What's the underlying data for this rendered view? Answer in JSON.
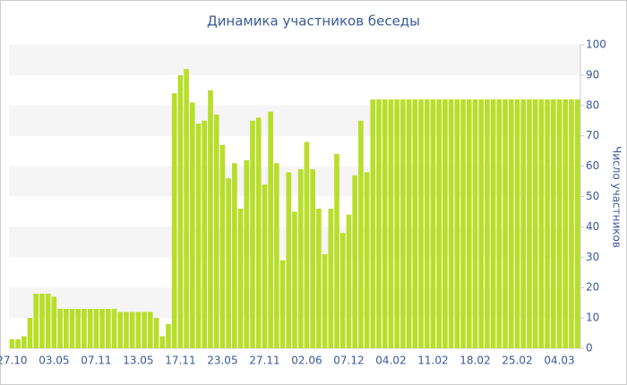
{
  "chart_data": {
    "type": "bar",
    "title": "Динамика участников беседы",
    "y_label": "Число участников",
    "categories": [
      "27.10",
      null,
      null,
      null,
      null,
      null,
      null,
      "03.05",
      null,
      null,
      null,
      null,
      null,
      null,
      "07.11",
      null,
      null,
      null,
      null,
      null,
      null,
      "13.05",
      null,
      null,
      null,
      null,
      null,
      null,
      "17.11",
      null,
      null,
      null,
      null,
      null,
      null,
      "23.05",
      null,
      null,
      null,
      null,
      null,
      null,
      "27.11",
      null,
      null,
      null,
      null,
      null,
      null,
      "02.06",
      null,
      null,
      null,
      null,
      null,
      null,
      "07.12",
      null,
      null,
      null,
      null,
      null,
      null,
      "04.02",
      null,
      null,
      null,
      null,
      null,
      null,
      "11.02",
      null,
      null,
      null,
      null,
      null,
      null,
      "18.02",
      null,
      null,
      null,
      null,
      null,
      null,
      "25.02",
      null,
      null,
      null,
      null,
      null,
      null,
      "04.03",
      null,
      null,
      null
    ],
    "values": [
      3,
      3,
      4,
      10,
      18,
      18,
      18,
      17,
      13,
      13,
      13,
      13,
      13,
      13,
      13,
      13,
      13,
      13,
      12,
      12,
      12,
      12,
      12,
      12,
      10,
      4,
      8,
      84,
      90,
      92,
      81,
      74,
      75,
      85,
      77,
      67,
      56,
      61,
      46,
      62,
      75,
      76,
      54,
      78,
      61,
      29,
      58,
      45,
      59,
      68,
      59,
      46,
      31,
      46,
      64,
      38,
      44,
      57,
      75,
      58,
      82,
      82,
      82,
      82,
      82,
      82,
      82,
      82,
      82,
      82,
      82,
      82,
      82,
      82,
      82,
      82,
      82,
      82,
      82,
      82,
      82,
      82,
      82,
      82,
      82,
      82,
      82,
      82,
      82,
      82,
      82,
      82,
      82,
      82,
      82
    ],
    "color": "#b8de2a",
    "ylim": [
      0,
      100
    ],
    "yticks": [
      0,
      10,
      20,
      30,
      40,
      50,
      60,
      70,
      80,
      90,
      100
    ],
    "grid": true
  }
}
